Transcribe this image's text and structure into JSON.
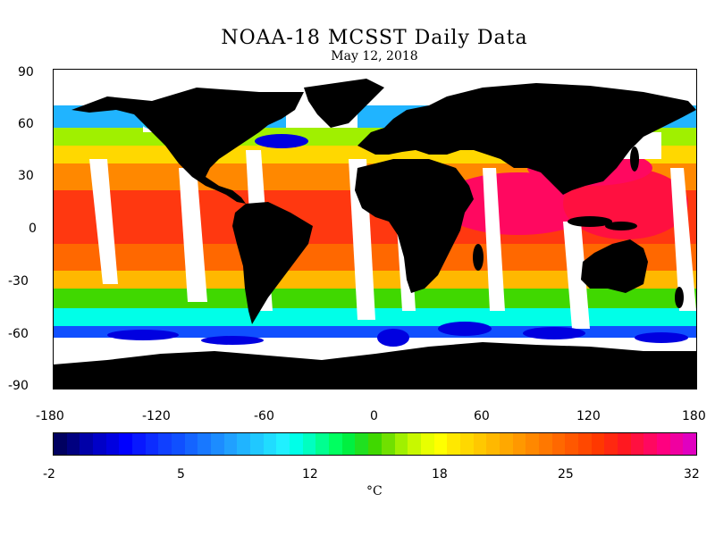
{
  "header": {
    "title": "NOAA-18 MCSST Daily Data",
    "date": "May 12, 2018"
  },
  "map": {
    "lat_ticks": [
      "90",
      "60",
      "30",
      "0",
      "-30",
      "-60",
      "-90"
    ],
    "lon_ticks": [
      "-180",
      "-120",
      "-60",
      "0",
      "60",
      "120",
      "180"
    ],
    "land_color": "#000000",
    "no_data_color": "#ffffff"
  },
  "colorbar": {
    "labels": [
      "-2",
      "5",
      "12",
      "18",
      "25",
      "32"
    ],
    "units": "°C",
    "min": -2,
    "max": 32,
    "colors": [
      "#000060",
      "#000080",
      "#0000a8",
      "#0000c8",
      "#0000e0",
      "#0000ff",
      "#0818ff",
      "#0c2cff",
      "#1040ff",
      "#1050ff",
      "#1464ff",
      "#1878ff",
      "#1c8cff",
      "#20a0ff",
      "#20b4ff",
      "#20c8ff",
      "#20dcff",
      "#20f0ff",
      "#00ffe8",
      "#00ffc0",
      "#00ff90",
      "#00ff60",
      "#00f040",
      "#20e020",
      "#40d800",
      "#70e000",
      "#a0f000",
      "#c8f800",
      "#e8ff00",
      "#ffff00",
      "#ffe800",
      "#ffd800",
      "#ffc800",
      "#ffb800",
      "#ffa800",
      "#ff9800",
      "#ff8800",
      "#ff7800",
      "#ff6800",
      "#ff5800",
      "#ff4800",
      "#ff3800",
      "#ff2810",
      "#ff1820",
      "#ff1040",
      "#ff0860",
      "#ff0080",
      "#f000a0",
      "#e000c0"
    ]
  }
}
